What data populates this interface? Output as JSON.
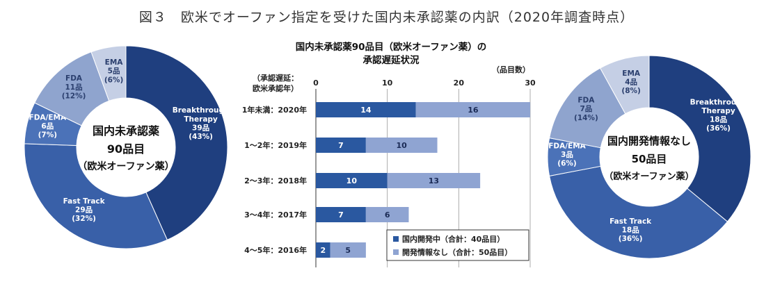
{
  "figure_title": "図３　欧米でオーファン指定を受けた国内未承認薬の内訳（2020年調査時点）",
  "colors": {
    "breakthrough": "#1f3f7f",
    "fast_track": "#3960a8",
    "fda_ema": "#4b72b8",
    "fda": "#8fa4ce",
    "ema": "#c5cfe5",
    "bar_dev": "#2a58a0",
    "bar_noinfo": "#8fa4d2"
  },
  "chart_data": [
    {
      "type": "pie",
      "center_text": [
        "国内未承認薬",
        "90品目",
        "（欧米オーファン薬）"
      ],
      "slices": [
        {
          "name": "Breakthrough Therapy",
          "label_lines": [
            "Breakthrough",
            "Therapy"
          ],
          "count_label": "39品",
          "pct_label": "(43%)",
          "value": 39,
          "color_key": "breakthrough"
        },
        {
          "name": "Fast Track",
          "label_lines": [
            "Fast Track"
          ],
          "count_label": "29品",
          "pct_label": "(32%)",
          "value": 29,
          "color_key": "fast_track"
        },
        {
          "name": "FDA/EMA",
          "label_lines": [
            "FDA/EMA"
          ],
          "count_label": "6品",
          "pct_label": "(7%)",
          "value": 6,
          "color_key": "fda_ema"
        },
        {
          "name": "FDA",
          "label_lines": [
            "FDA"
          ],
          "count_label": "11品",
          "pct_label": "(12%)",
          "value": 11,
          "color_key": "fda"
        },
        {
          "name": "EMA",
          "label_lines": [
            "EMA"
          ],
          "count_label": "5品",
          "pct_label": "(6%)",
          "value": 5,
          "color_key": "ema"
        }
      ]
    },
    {
      "type": "bar",
      "orientation": "horizontal",
      "stacked": true,
      "title_lines": [
        "国内未承認薬90品目（欧米オーファン薬）の",
        "承認遅延状況"
      ],
      "ylabel_lines": [
        "（承認遅延：",
        "欧米承認年）"
      ],
      "xlabel": "（品目数）",
      "xlim": [
        0,
        30
      ],
      "xticks": [
        0,
        10,
        20,
        30
      ],
      "categories": [
        "1年未満：2020年",
        "1～2年：2019年",
        "2～3年：2018年",
        "3～4年：2017年",
        "4～5年：2016年"
      ],
      "series": [
        {
          "name": "国内開発中（合計：40品目）",
          "values": [
            14,
            7,
            10,
            7,
            2
          ],
          "color_key": "bar_dev"
        },
        {
          "name": "開発情報なし（合計：50品目）",
          "values": [
            16,
            10,
            13,
            6,
            5
          ],
          "color_key": "bar_noinfo"
        }
      ],
      "legend_position": "bottom-right",
      "grid": true
    },
    {
      "type": "pie",
      "center_text": [
        "国内開発情報なし",
        "50品目",
        "（欧米オーファン薬）"
      ],
      "slices": [
        {
          "name": "Breakthrough Therapy",
          "label_lines": [
            "Breakthrough",
            "Therapy"
          ],
          "count_label": "18品",
          "pct_label": "(36%)",
          "value": 18,
          "color_key": "breakthrough"
        },
        {
          "name": "Fast Track",
          "label_lines": [
            "Fast Track"
          ],
          "count_label": "18品",
          "pct_label": "(36%)",
          "value": 18,
          "color_key": "fast_track"
        },
        {
          "name": "FDA/EMA",
          "label_lines": [
            "FDA/EMA"
          ],
          "count_label": "3品",
          "pct_label": "(6%)",
          "value": 3,
          "color_key": "fda_ema"
        },
        {
          "name": "FDA",
          "label_lines": [
            "FDA"
          ],
          "count_label": "7品",
          "pct_label": "(14%)",
          "value": 7,
          "color_key": "fda"
        },
        {
          "name": "EMA",
          "label_lines": [
            "EMA"
          ],
          "count_label": "4品",
          "pct_label": "(8%)",
          "value": 4,
          "color_key": "ema"
        }
      ]
    }
  ]
}
